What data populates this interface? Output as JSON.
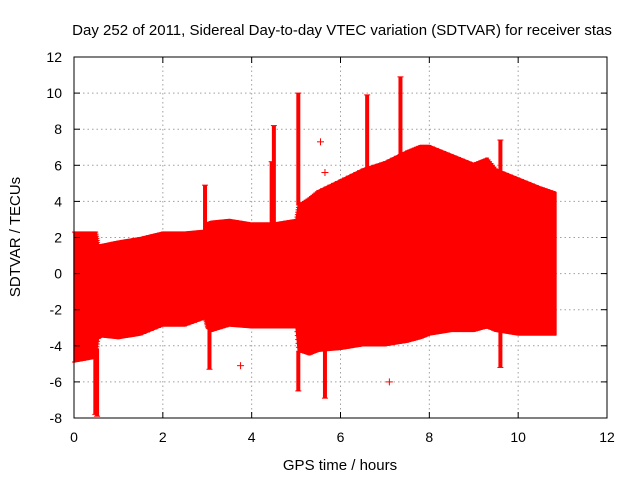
{
  "chart_data": {
    "type": "scatter",
    "title": "Day 252 of 2011, Sidereal Day-to-day VTEC variation (SDTVAR) for receiver stas",
    "xlabel": "GPS time / hours",
    "ylabel": "SDTVAR / TECUs",
    "xlim": [
      0,
      12
    ],
    "ylim": [
      -8,
      12
    ],
    "x_ticks": [
      "0",
      "2",
      "4",
      "6",
      "8",
      "10",
      "12"
    ],
    "y_ticks": [
      "-8",
      "-6",
      "-4",
      "-2",
      "0",
      "2",
      "4",
      "6",
      "8",
      "10",
      "12"
    ],
    "grid": true,
    "series_color": "#ff0000",
    "envelope": {
      "x": [
        0.0,
        0.45,
        0.5,
        0.55,
        0.6,
        1.0,
        1.5,
        2.0,
        2.5,
        2.95,
        3.0,
        3.1,
        3.5,
        4.0,
        4.5,
        5.0,
        5.05,
        5.3,
        5.5,
        6.0,
        6.5,
        7.0,
        7.5,
        7.8,
        8.0,
        8.5,
        9.0,
        9.3,
        9.5,
        10.0,
        10.5,
        10.85
      ],
      "upper": [
        2.3,
        2.3,
        2.3,
        1.6,
        1.6,
        1.8,
        2.0,
        2.3,
        2.3,
        2.4,
        2.8,
        2.9,
        3.0,
        2.8,
        2.8,
        3.0,
        3.8,
        4.2,
        4.6,
        5.2,
        5.8,
        6.2,
        6.8,
        7.1,
        7.1,
        6.6,
        6.1,
        6.4,
        5.8,
        5.3,
        4.8,
        4.5
      ],
      "lower": [
        -4.9,
        -4.7,
        -4.5,
        -3.6,
        -3.5,
        -3.6,
        -3.4,
        -2.9,
        -2.9,
        -2.5,
        -3.0,
        -3.2,
        -2.9,
        -3.0,
        -3.0,
        -3.0,
        -4.3,
        -4.5,
        -4.3,
        -4.2,
        -4.0,
        -4.0,
        -3.8,
        -3.6,
        -3.4,
        -3.2,
        -3.2,
        -3.0,
        -3.2,
        -3.4,
        -3.4,
        -3.4
      ]
    },
    "spikes": [
      {
        "x": 0.48,
        "y": -7.8
      },
      {
        "x": 0.52,
        "y": -7.9
      },
      {
        "x": 2.95,
        "y": 4.9
      },
      {
        "x": 3.05,
        "y": -5.3
      },
      {
        "x": 4.5,
        "y": 8.2
      },
      {
        "x": 4.45,
        "y": 6.2
      },
      {
        "x": 5.05,
        "y": 10.0
      },
      {
        "x": 5.05,
        "y": -6.5
      },
      {
        "x": 5.65,
        "y": -6.9
      },
      {
        "x": 6.6,
        "y": 9.9
      },
      {
        "x": 7.35,
        "y": 10.9
      },
      {
        "x": 9.6,
        "y": 7.4
      },
      {
        "x": 9.6,
        "y": -5.2
      }
    ],
    "outliers": [
      {
        "x": 5.55,
        "y": 7.3
      },
      {
        "x": 5.65,
        "y": 5.6
      },
      {
        "x": 5.8,
        "y": 4.8
      },
      {
        "x": 3.75,
        "y": -5.1
      },
      {
        "x": 7.1,
        "y": -6.0
      }
    ]
  }
}
